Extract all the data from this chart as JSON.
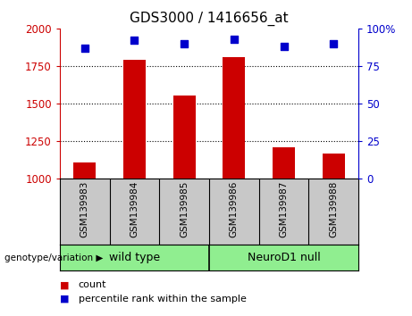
{
  "title": "GDS3000 / 1416656_at",
  "samples": [
    "GSM139983",
    "GSM139984",
    "GSM139985",
    "GSM139986",
    "GSM139987",
    "GSM139988"
  ],
  "count_values": [
    1110,
    1790,
    1555,
    1810,
    1210,
    1165
  ],
  "percentile_values": [
    87,
    92,
    90,
    93,
    88,
    90
  ],
  "ylim_left": [
    1000,
    2000
  ],
  "ylim_right": [
    0,
    100
  ],
  "yticks_left": [
    1000,
    1250,
    1500,
    1750,
    2000
  ],
  "yticks_right": [
    0,
    25,
    50,
    75,
    100
  ],
  "bar_color": "#cc0000",
  "dot_color": "#0000cc",
  "group1_label": "wild type",
  "group2_label": "NeuroD1 null",
  "group1_indices": [
    0,
    1,
    2
  ],
  "group2_indices": [
    3,
    4,
    5
  ],
  "group_bg_color": "#90ee90",
  "sample_bg_color": "#c8c8c8",
  "legend_count_label": "count",
  "legend_pct_label": "percentile rank within the sample",
  "genotype_label": "genotype/variation"
}
